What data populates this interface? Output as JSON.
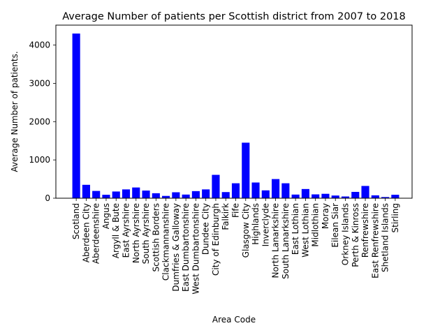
{
  "chart_data": {
    "type": "bar",
    "title": "Average Number of patients per Scottish district from 2007 to 2018",
    "xlabel": "Area Code",
    "ylabel": "Average Number of patients.",
    "ylim": [
      0,
      4520
    ],
    "yticks": [
      0,
      1000,
      2000,
      3000,
      4000
    ],
    "bar_color": "#0000ff",
    "grid": false,
    "categories": [
      "Scotland",
      "Aberdeen City",
      "Aberdeenshire",
      "Angus",
      "Argyll & Bute",
      "East Ayrshire",
      "North Ayrshire",
      "South Ayrshire",
      "Scottish Borders",
      "Clackmannanshire",
      "Dumfries & Galloway",
      "East Dumbartonshire",
      "West Dumbartonshire",
      "Dundee City",
      "City of Edinburgh",
      "Falkirk",
      "Fife",
      "Glasgow City",
      "Highlands",
      "Inverclyde",
      "North Lanarkshire",
      "South Lanarkshire",
      "East Lothian",
      "West Lothian",
      "Midlothian",
      "Moray",
      "Eilean Siar",
      "Orkney Islands",
      "Perth & Kinross",
      "Renfrewshire",
      "East Renfrewshire",
      "Shetland Islands",
      "Stirling"
    ],
    "values": [
      4300,
      350,
      190,
      90,
      175,
      230,
      280,
      200,
      130,
      60,
      155,
      95,
      185,
      230,
      610,
      160,
      390,
      1450,
      410,
      205,
      500,
      390,
      95,
      240,
      100,
      115,
      70,
      45,
      165,
      320,
      75,
      30,
      90
    ]
  }
}
